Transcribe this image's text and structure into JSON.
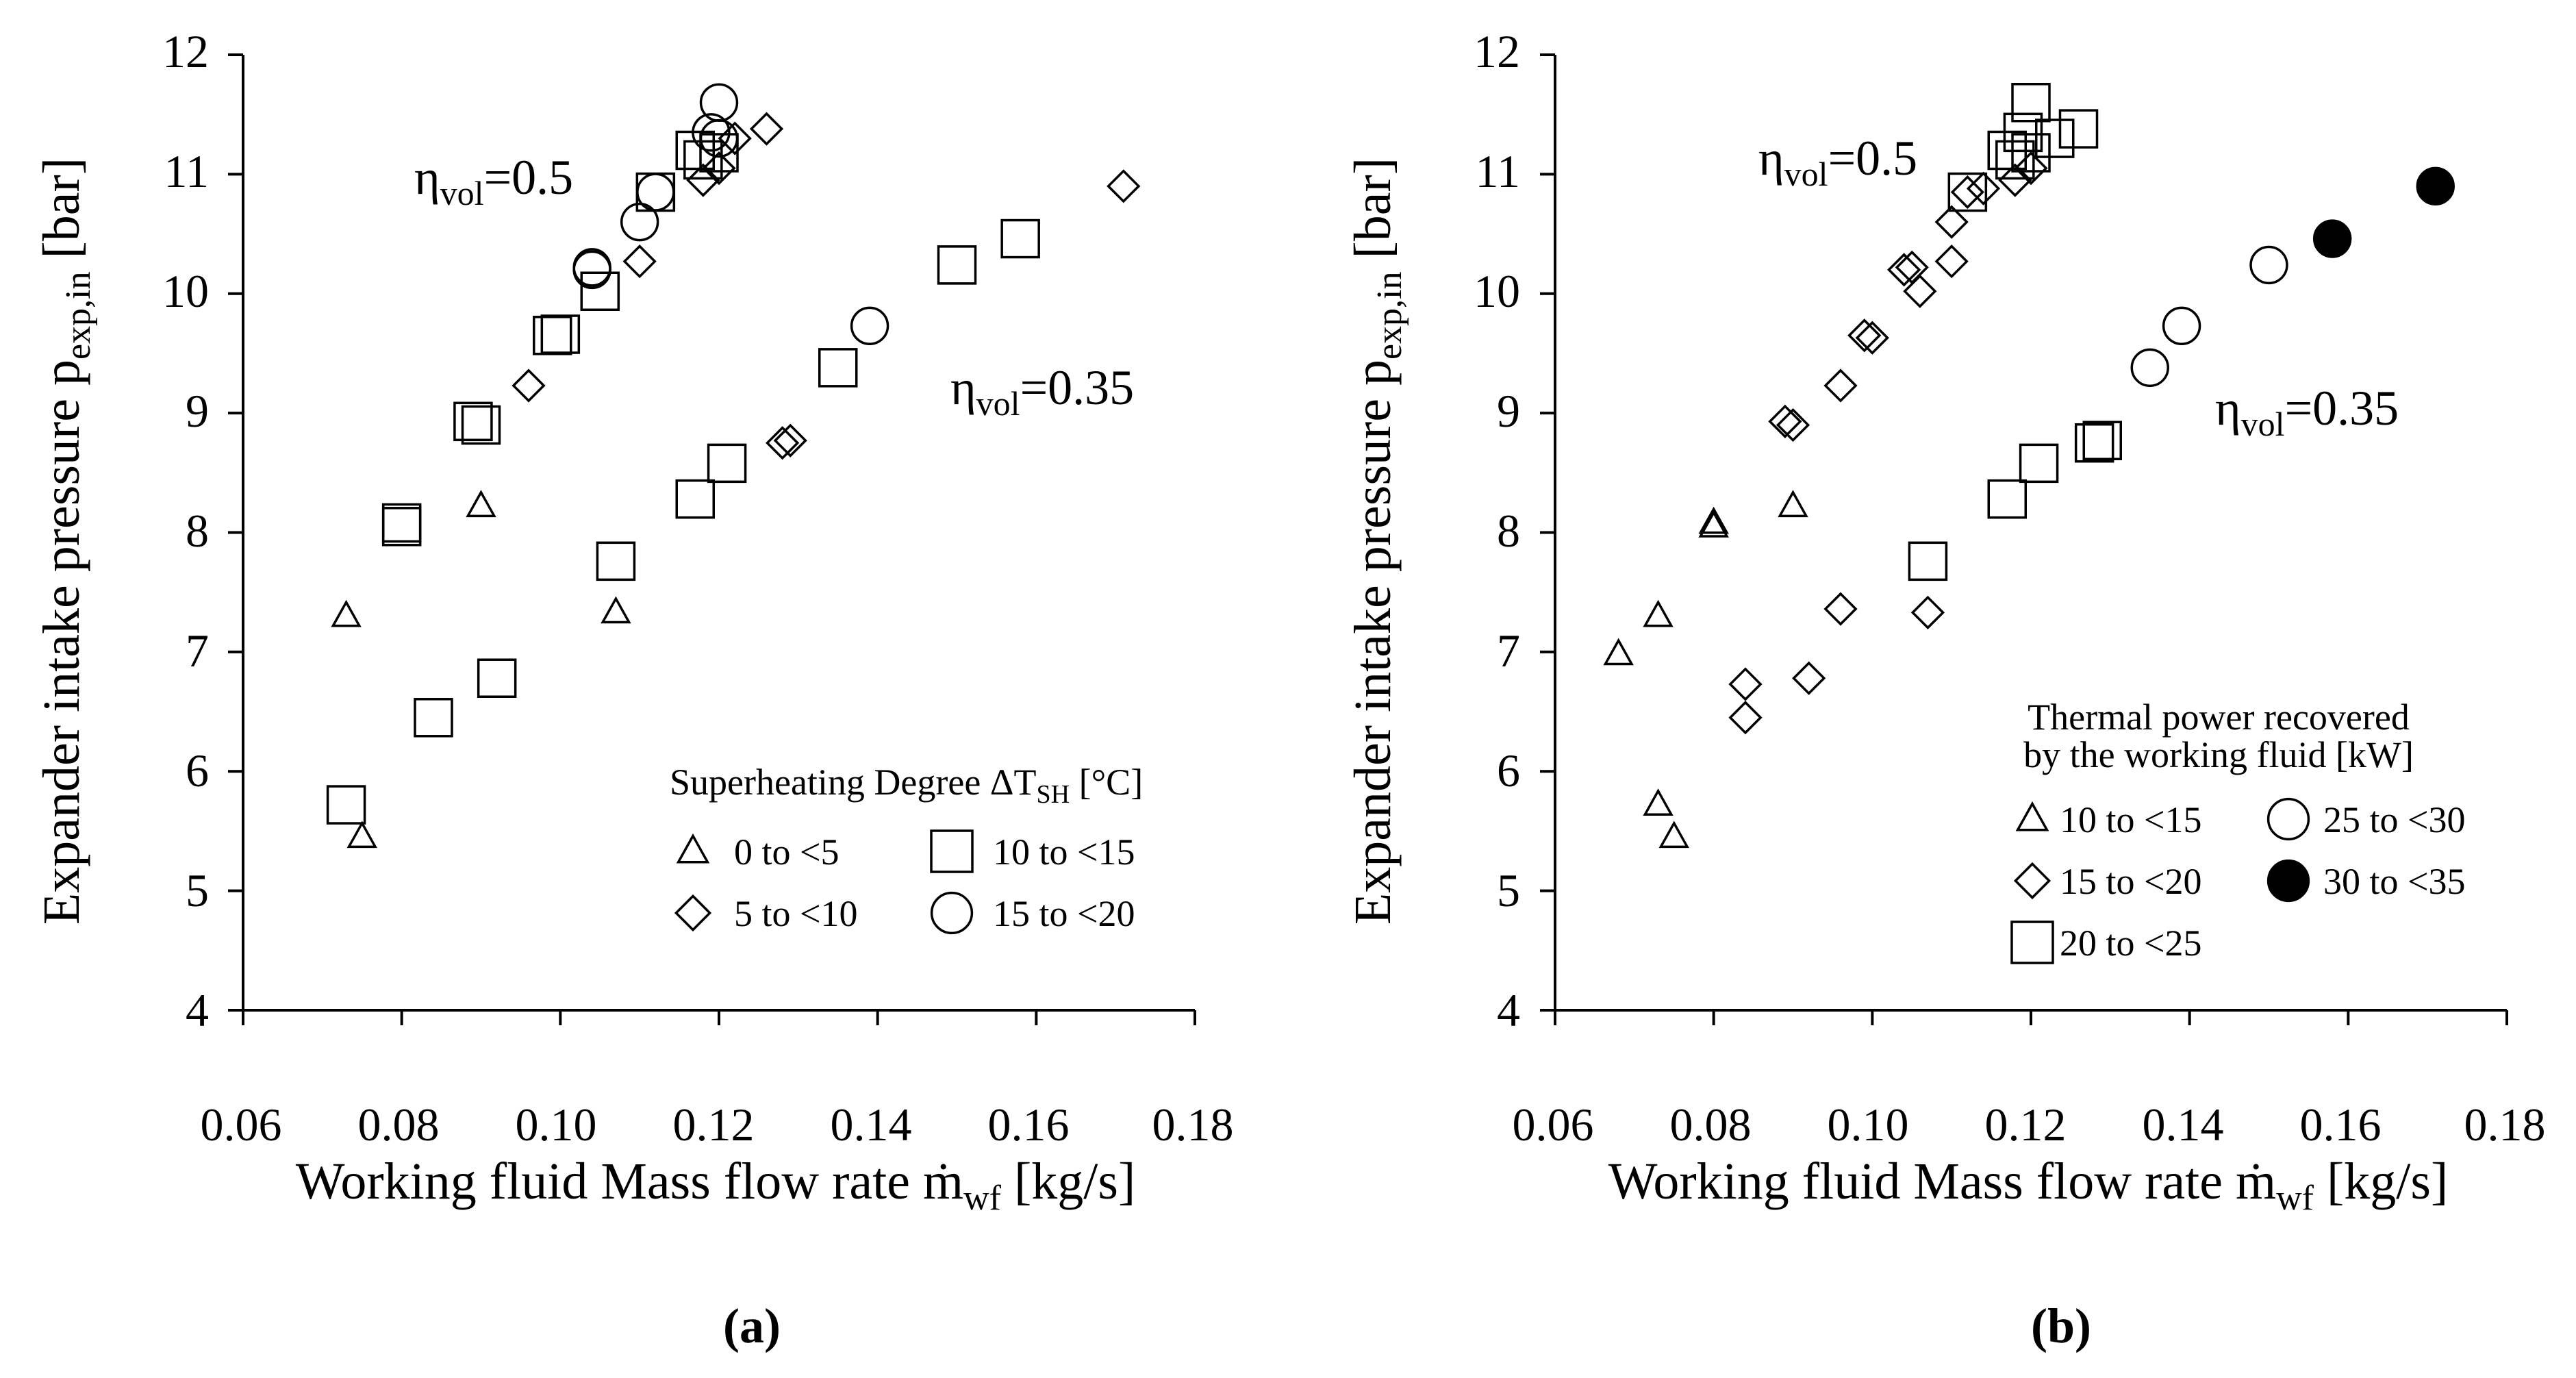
{
  "chart_data": [
    {
      "type": "scatter",
      "panel_label": "(a)",
      "xlabel": "Working fluid Mass flow rate ṁ",
      "xlabel_sub": "wf",
      "xlabel_unit": " [kg/s]",
      "ylabel": "Expander intake pressure p",
      "ylabel_sub": "exp,in",
      "ylabel_unit": " [bar]",
      "xlim": [
        0.06,
        0.18
      ],
      "ylim": [
        4,
        12
      ],
      "xticks": [
        "0.06",
        "0.08",
        "0.10",
        "0.12",
        "0.14",
        "0.16",
        "0.18"
      ],
      "yticks": [
        "4",
        "5",
        "6",
        "7",
        "8",
        "9",
        "10",
        "11",
        "12"
      ],
      "annotations": [
        {
          "prefix": "η",
          "sub": "vol",
          "rest": "=0.5"
        },
        {
          "prefix": "η",
          "sub": "vol",
          "rest": "=0.35"
        }
      ],
      "legend": {
        "title": "Superheating Degree ΔT",
        "title_sub": "SH",
        "title_unit": " [°C]",
        "entries": [
          {
            "label": "0 to <5",
            "marker": "triangle",
            "filled": false
          },
          {
            "label": "10 to <15",
            "marker": "square",
            "filled": false
          },
          {
            "label": "5 to <10",
            "marker": "diamond",
            "filled": false
          },
          {
            "label": "15 to <20",
            "marker": "circle",
            "filled": false
          }
        ]
      },
      "series": [
        {
          "name": "0 to <5",
          "marker": "triangle",
          "filled": false,
          "points": [
            [
              0.073,
              7.3
            ],
            [
              0.075,
              5.45
            ],
            [
              0.09,
              8.22
            ],
            [
              0.107,
              7.33
            ]
          ]
        },
        {
          "name": "5 to <10",
          "marker": "diamond",
          "filled": false,
          "points": [
            [
              0.096,
              9.23
            ],
            [
              0.11,
              10.27
            ],
            [
              0.118,
              10.95
            ],
            [
              0.12,
              11.05
            ],
            [
              0.122,
              11.3
            ],
            [
              0.126,
              11.38
            ],
            [
              0.128,
              8.75
            ],
            [
              0.129,
              8.77
            ],
            [
              0.171,
              10.9
            ]
          ]
        },
        {
          "name": "10 to <15",
          "marker": "square",
          "filled": false,
          "points": [
            [
              0.073,
              5.72
            ],
            [
              0.08,
              8.05
            ],
            [
              0.08,
              8.08
            ],
            [
              0.084,
              6.45
            ],
            [
              0.089,
              8.93
            ],
            [
              0.09,
              8.9
            ],
            [
              0.092,
              6.78
            ],
            [
              0.099,
              9.65
            ],
            [
              0.1,
              9.66
            ],
            [
              0.105,
              10.02
            ],
            [
              0.107,
              7.76
            ],
            [
              0.112,
              10.85
            ],
            [
              0.117,
              8.28
            ],
            [
              0.117,
              11.2
            ],
            [
              0.118,
              11.12
            ],
            [
              0.12,
              11.18
            ],
            [
              0.121,
              8.58
            ],
            [
              0.135,
              9.38
            ],
            [
              0.15,
              10.24
            ],
            [
              0.158,
              10.46
            ]
          ]
        },
        {
          "name": "15 to <20",
          "marker": "circle",
          "filled": false,
          "points": [
            [
              0.104,
              10.2
            ],
            [
              0.104,
              10.22
            ],
            [
              0.11,
              10.6
            ],
            [
              0.112,
              10.85
            ],
            [
              0.119,
              11.35
            ],
            [
              0.12,
              11.3
            ],
            [
              0.12,
              11.6
            ],
            [
              0.139,
              9.73
            ]
          ]
        }
      ]
    },
    {
      "type": "scatter",
      "panel_label": "(b)",
      "xlabel": "Working fluid Mass flow rate ṁ",
      "xlabel_sub": "wf",
      "xlabel_unit": " [kg/s]",
      "ylabel": "Expander intake pressure p",
      "ylabel_sub": "exp,in",
      "ylabel_unit": " [bar]",
      "xlim": [
        0.06,
        0.18
      ],
      "ylim": [
        4,
        12
      ],
      "xticks": [
        "0.06",
        "0.08",
        "0.10",
        "0.12",
        "0.14",
        "0.16",
        "0.18"
      ],
      "yticks": [
        "4",
        "5",
        "6",
        "7",
        "8",
        "9",
        "10",
        "11",
        "12"
      ],
      "annotations": [
        {
          "prefix": "η",
          "sub": "vol",
          "rest": "=0.5"
        },
        {
          "prefix": "η",
          "sub": "vol",
          "rest": "=0.35"
        }
      ],
      "legend": {
        "title_line1": "Thermal power recovered",
        "title_line2": "by the working fluid [kW]",
        "entries": [
          {
            "label": "10 to <15",
            "marker": "triangle",
            "filled": false
          },
          {
            "label": "25 to <30",
            "marker": "circle",
            "filled": false
          },
          {
            "label": "15 to <20",
            "marker": "diamond",
            "filled": false
          },
          {
            "label": "30 to <35",
            "marker": "circle",
            "filled": true
          },
          {
            "label": "20 to <25",
            "marker": "square",
            "filled": false
          }
        ]
      },
      "series": [
        {
          "name": "10 to <15",
          "marker": "triangle",
          "filled": false,
          "points": [
            [
              0.068,
              6.98
            ],
            [
              0.073,
              7.3
            ],
            [
              0.073,
              5.72
            ],
            [
              0.075,
              5.45
            ],
            [
              0.08,
              8.08
            ],
            [
              0.08,
              8.05
            ],
            [
              0.09,
              8.22
            ]
          ]
        },
        {
          "name": "15 to <20",
          "marker": "diamond",
          "filled": false,
          "points": [
            [
              0.084,
              6.45
            ],
            [
              0.084,
              6.73
            ],
            [
              0.089,
              8.93
            ],
            [
              0.09,
              8.9
            ],
            [
              0.092,
              6.78
            ],
            [
              0.096,
              7.36
            ],
            [
              0.096,
              9.23
            ],
            [
              0.099,
              9.65
            ],
            [
              0.1,
              9.63
            ],
            [
              0.104,
              10.2
            ],
            [
              0.105,
              10.22
            ],
            [
              0.106,
              10.02
            ],
            [
              0.107,
              7.33
            ],
            [
              0.11,
              10.6
            ],
            [
              0.11,
              10.27
            ],
            [
              0.112,
              10.85
            ],
            [
              0.114,
              10.88
            ],
            [
              0.118,
              10.95
            ],
            [
              0.12,
              11.05
            ]
          ]
        },
        {
          "name": "20 to <25",
          "marker": "square",
          "filled": false,
          "points": [
            [
              0.107,
              7.76
            ],
            [
              0.112,
              10.85
            ],
            [
              0.117,
              8.28
            ],
            [
              0.117,
              11.2
            ],
            [
              0.118,
              11.12
            ],
            [
              0.119,
              11.35
            ],
            [
              0.12,
              11.6
            ],
            [
              0.12,
              11.18
            ],
            [
              0.121,
              8.58
            ],
            [
              0.123,
              11.3
            ],
            [
              0.126,
              11.38
            ],
            [
              0.128,
              8.75
            ],
            [
              0.129,
              8.77
            ]
          ]
        },
        {
          "name": "25 to <30",
          "marker": "circle",
          "filled": false,
          "points": [
            [
              0.135,
              9.38
            ],
            [
              0.139,
              9.73
            ],
            [
              0.15,
              10.24
            ]
          ]
        },
        {
          "name": "30 to <35",
          "marker": "circle",
          "filled": true,
          "points": [
            [
              0.158,
              10.46
            ],
            [
              0.171,
              10.9
            ]
          ]
        }
      ]
    }
  ]
}
